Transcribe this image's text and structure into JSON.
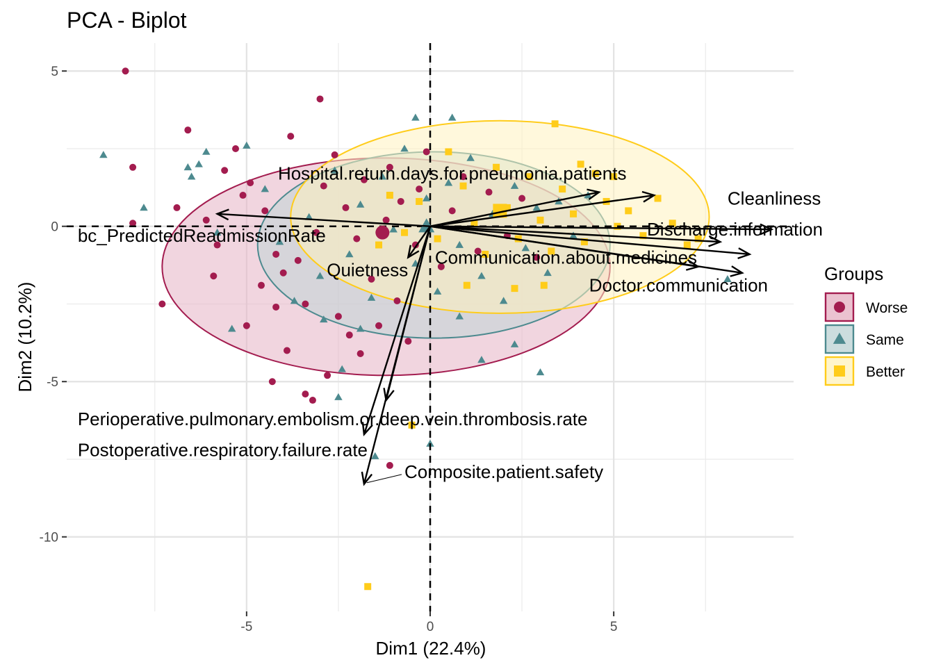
{
  "chart_data": {
    "type": "scatter",
    "title": "PCA - Biplot",
    "xlabel": "Dim1 (22.4%)",
    "ylabel": "Dim2 (10.2%)",
    "xlim": [
      -9.9,
      9.9
    ],
    "ylim": [
      -12.4,
      5.9
    ],
    "x_ticks": [
      -5,
      0,
      5
    ],
    "x_tick_labels": [
      "-5",
      "0",
      "5"
    ],
    "y_ticks": [
      5,
      0,
      -5,
      -10
    ],
    "y_tick_labels": [
      "5",
      "0",
      "-5",
      "-10"
    ],
    "grid": true,
    "reference_line_x": 0,
    "reference_line_y": 0,
    "legend": {
      "title": "Groups",
      "position": "right",
      "entries": [
        {
          "label": "Worse",
          "shape": "circle",
          "color": "#A31C4F"
        },
        {
          "label": "Same",
          "shape": "triangle",
          "color": "#4D8A8F"
        },
        {
          "label": "Better",
          "shape": "square",
          "color": "#FFCC1A"
        }
      ]
    },
    "groups": [
      {
        "name": "Worse",
        "shape": "circle",
        "color": "#A31C4F",
        "fill": "#E6B3C4",
        "centroid": [
          -1.3,
          -0.2
        ],
        "ellipse": {
          "center": [
            -1.2,
            -1.3
          ],
          "rx": 6.1,
          "ry": 3.5
        },
        "points": [
          [
            -8.3,
            5.0
          ],
          [
            -8.1,
            1.9
          ],
          [
            -8.1,
            0.1
          ],
          [
            -7.3,
            -2.5
          ],
          [
            -6.6,
            3.1
          ],
          [
            -6.9,
            0.6
          ],
          [
            -5.8,
            -0.6
          ],
          [
            -5.1,
            1.0
          ],
          [
            -5.3,
            2.5
          ],
          [
            -4.9,
            1.4
          ],
          [
            -4.5,
            0.5
          ],
          [
            -4.2,
            -0.9
          ],
          [
            -4.6,
            -1.9
          ],
          [
            -5.0,
            -3.2
          ],
          [
            -3.9,
            -4.0
          ],
          [
            -3.4,
            -2.5
          ],
          [
            -3.6,
            -1.1
          ],
          [
            -3.1,
            -0.2
          ],
          [
            -2.9,
            1.3
          ],
          [
            -2.6,
            2.3
          ],
          [
            -2.3,
            0.6
          ],
          [
            -2.0,
            -0.4
          ],
          [
            -1.8,
            1.5
          ],
          [
            -1.6,
            -1.7
          ],
          [
            -1.4,
            -3.2
          ],
          [
            -1.2,
            0.2
          ],
          [
            -1.1,
            1.9
          ],
          [
            -0.9,
            -2.4
          ],
          [
            -0.8,
            0.8
          ],
          [
            -0.6,
            -3.7
          ],
          [
            -0.4,
            -0.6
          ],
          [
            -0.3,
            1.2
          ],
          [
            -0.1,
            2.4
          ],
          [
            0.3,
            -1.3
          ],
          [
            0.6,
            0.5
          ],
          [
            0.9,
            1.6
          ],
          [
            1.3,
            -0.8
          ],
          [
            1.6,
            1.1
          ],
          [
            2.1,
            -0.3
          ],
          [
            2.5,
            0.9
          ],
          [
            2.9,
            -1.0
          ],
          [
            -3.0,
            4.1
          ],
          [
            -3.4,
            -5.4
          ],
          [
            -1.1,
            -7.7
          ],
          [
            -2.8,
            -4.8
          ],
          [
            -5.9,
            -1.6
          ],
          [
            -3.8,
            2.9
          ],
          [
            -4.2,
            -2.6
          ],
          [
            -2.2,
            -3.5
          ],
          [
            -1.9,
            -4.1
          ],
          [
            -6.1,
            0.2
          ],
          [
            -5.6,
            1.8
          ],
          [
            -4.0,
            -1.5
          ],
          [
            -2.5,
            -2.9
          ],
          [
            -3.2,
            -5.6
          ],
          [
            -4.3,
            -5.0
          ]
        ]
      },
      {
        "name": "Same",
        "shape": "triangle",
        "color": "#4D8A8F",
        "fill": "#BFD5D6",
        "centroid": [
          -0.1,
          0.0
        ],
        "ellipse": {
          "center": [
            0.1,
            -0.6
          ],
          "rx": 4.8,
          "ry": 3.0
        },
        "points": [
          [
            -8.9,
            2.3
          ],
          [
            -7.8,
            0.6
          ],
          [
            -6.3,
            2.0
          ],
          [
            -6.5,
            1.6
          ],
          [
            -5.8,
            -0.2
          ],
          [
            -5.0,
            2.6
          ],
          [
            -4.5,
            1.2
          ],
          [
            -4.1,
            -0.5
          ],
          [
            -3.7,
            -2.4
          ],
          [
            -3.3,
            0.3
          ],
          [
            -3.0,
            -1.6
          ],
          [
            -2.6,
            1.8
          ],
          [
            -2.2,
            -0.9
          ],
          [
            -1.9,
            0.7
          ],
          [
            -1.6,
            -2.3
          ],
          [
            -1.3,
            1.6
          ],
          [
            -1.0,
            -0.1
          ],
          [
            -0.7,
            2.5
          ],
          [
            -0.4,
            -1.2
          ],
          [
            -0.1,
            0.9
          ],
          [
            0.2,
            -2.1
          ],
          [
            0.5,
            1.4
          ],
          [
            0.8,
            -0.6
          ],
          [
            1.1,
            2.2
          ],
          [
            1.4,
            -1.6
          ],
          [
            1.7,
            0.4
          ],
          [
            2.0,
            -2.4
          ],
          [
            2.3,
            1.3
          ],
          [
            2.6,
            -0.7
          ],
          [
            2.9,
            0.6
          ],
          [
            3.2,
            -1.5
          ],
          [
            3.5,
            0.8
          ],
          [
            3.9,
            -0.3
          ],
          [
            4.3,
            1.0
          ],
          [
            1.4,
            -4.3
          ],
          [
            3.0,
            -4.7
          ],
          [
            0.0,
            -7.0
          ],
          [
            -1.5,
            -7.4
          ],
          [
            -2.5,
            -5.5
          ],
          [
            -2.4,
            -4.6
          ],
          [
            8.1,
            -1.7
          ],
          [
            -6.6,
            1.9
          ],
          [
            -6.1,
            2.4
          ],
          [
            -5.4,
            -3.3
          ],
          [
            0.6,
            3.5
          ],
          [
            -0.4,
            3.5
          ],
          [
            2.3,
            -3.8
          ],
          [
            -1.9,
            -3.3
          ],
          [
            0.8,
            -2.9
          ],
          [
            -2.9,
            -3.0
          ]
        ]
      },
      {
        "name": "Better",
        "shape": "square",
        "color": "#FFCC1A",
        "fill": "#FFF3BF",
        "centroid": [
          1.9,
          0.5
        ],
        "ellipse": {
          "center": [
            1.9,
            0.3
          ],
          "rx": 5.7,
          "ry": 3.1
        },
        "points": [
          [
            3.4,
            3.3
          ],
          [
            -1.7,
            -11.6
          ],
          [
            -0.5,
            -6.4
          ],
          [
            0.5,
            2.4
          ],
          [
            0.9,
            1.3
          ],
          [
            1.2,
            0.1
          ],
          [
            1.5,
            -0.9
          ],
          [
            1.8,
            1.9
          ],
          [
            2.1,
            0.6
          ],
          [
            2.4,
            -0.4
          ],
          [
            2.7,
            1.6
          ],
          [
            3.0,
            0.2
          ],
          [
            3.3,
            -0.8
          ],
          [
            3.6,
            1.2
          ],
          [
            3.9,
            0.4
          ],
          [
            4.2,
            -0.5
          ],
          [
            4.5,
            1.7
          ],
          [
            4.8,
            0.8
          ],
          [
            5.1,
            0.0
          ],
          [
            5.4,
            0.5
          ],
          [
            5.8,
            -0.3
          ],
          [
            6.2,
            0.9
          ],
          [
            6.6,
            0.1
          ],
          [
            7.0,
            -0.6
          ],
          [
            7.3,
            -0.4
          ],
          [
            0.2,
            -0.4
          ],
          [
            -0.3,
            0.8
          ],
          [
            -0.7,
            -0.2
          ],
          [
            -1.1,
            1.0
          ],
          [
            -1.4,
            -0.6
          ],
          [
            1.0,
            -1.9
          ],
          [
            2.3,
            -2.0
          ],
          [
            3.1,
            -1.9
          ],
          [
            4.1,
            2.0
          ],
          [
            5.0,
            1.6
          ]
        ]
      }
    ],
    "loadings": [
      {
        "label": "Cleanliness",
        "end": [
          6.1,
          1.0
        ],
        "label_pos": [
          8.1,
          0.9
        ],
        "label_anchor": "start"
      },
      {
        "label": "Hospital.return.days.for.pneumonia.patients",
        "end": [
          4.6,
          1.1
        ],
        "label_pos": [
          0.6,
          1.7
        ],
        "label_anchor": "middle"
      },
      {
        "label": "Discharge.information",
        "end": [
          9.3,
          -0.1
        ],
        "label_pos": [
          8.3,
          -0.1
        ],
        "label_anchor": "middle"
      },
      {
        "label": "Communication.about.medicines",
        "end": [
          7.9,
          -0.5
        ],
        "label_pos": [
          3.7,
          -1.0
        ],
        "label_anchor": "middle"
      },
      {
        "label": "",
        "end": [
          8.7,
          -0.9
        ],
        "label_pos": null,
        "label_anchor": "middle"
      },
      {
        "label": "Doctor.communication",
        "end": [
          7.3,
          -1.3
        ],
        "label_pos": [
          9.2,
          -1.9
        ],
        "label_anchor": "end"
      },
      {
        "label": "",
        "end": [
          8.5,
          -1.5
        ],
        "label_pos": null,
        "label_anchor": "middle"
      },
      {
        "label": "bc_PredictedReadmissionRate",
        "end": [
          -5.8,
          0.4
        ],
        "label_pos": [
          -9.6,
          -0.3
        ],
        "label_anchor": "start"
      },
      {
        "label": "Quietness",
        "end": [
          -0.6,
          -1.0
        ],
        "label_pos": [
          -0.6,
          -1.4
        ],
        "label_anchor": "end"
      },
      {
        "label": "Perioperative.pulmonary.embolism.or.deep.vein.thrombosis.rate",
        "end": [
          -1.2,
          -5.6
        ],
        "label_pos": [
          -9.6,
          -6.2
        ],
        "label_anchor": "start"
      },
      {
        "label": "Postoperative.respiratory.failure.rate",
        "end": [
          -1.8,
          -6.7
        ],
        "label_pos": [
          -9.6,
          -7.2
        ],
        "label_anchor": "start"
      },
      {
        "label": "Composite.patient.safety",
        "end": [
          -1.8,
          -8.3
        ],
        "label_pos": [
          -0.7,
          -7.9
        ],
        "label_anchor": "start"
      }
    ]
  }
}
